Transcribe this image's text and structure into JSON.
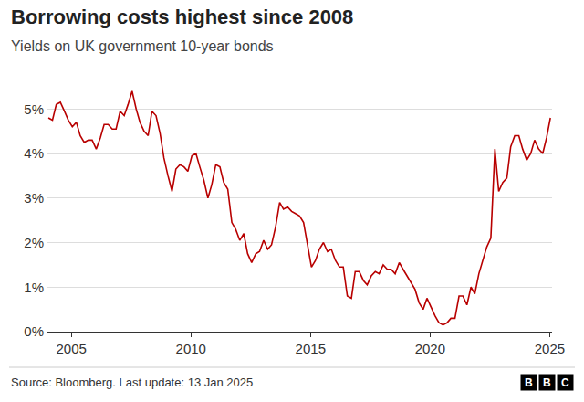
{
  "chart_data": {
    "type": "line",
    "title": "Borrowing costs highest since 2008",
    "subtitle": "Yields on UK government 10-year bonds",
    "source": "Source: Bloomberg. Last update: 13 Jan 2025",
    "logo": "BBC",
    "color": "#b80000",
    "grid": true,
    "xlim": [
      2004,
      2025.1
    ],
    "xticks": [
      2005,
      2010,
      2015,
      2020,
      2025
    ],
    "ylim": [
      0,
      5.6
    ],
    "yticks": [
      {
        "value": 0,
        "label": "0%"
      },
      {
        "value": 1,
        "label": "1%"
      },
      {
        "value": 2,
        "label": "2%"
      },
      {
        "value": 3,
        "label": "3%"
      },
      {
        "value": 4,
        "label": "4%"
      },
      {
        "value": 5,
        "label": "5%"
      }
    ],
    "x": [
      2004.04,
      2004.21,
      2004.37,
      2004.54,
      2004.71,
      2004.87,
      2005.04,
      2005.21,
      2005.37,
      2005.54,
      2005.71,
      2005.87,
      2006.04,
      2006.21,
      2006.37,
      2006.54,
      2006.71,
      2006.87,
      2007.04,
      2007.21,
      2007.37,
      2007.54,
      2007.71,
      2007.87,
      2008.04,
      2008.21,
      2008.37,
      2008.54,
      2008.71,
      2008.87,
      2009.04,
      2009.21,
      2009.37,
      2009.54,
      2009.71,
      2009.87,
      2010.04,
      2010.21,
      2010.37,
      2010.54,
      2010.71,
      2010.87,
      2011.04,
      2011.21,
      2011.37,
      2011.54,
      2011.71,
      2011.87,
      2012.04,
      2012.21,
      2012.37,
      2012.54,
      2012.71,
      2012.87,
      2013.04,
      2013.21,
      2013.37,
      2013.54,
      2013.71,
      2013.87,
      2014.04,
      2014.21,
      2014.37,
      2014.54,
      2014.71,
      2014.87,
      2015.04,
      2015.21,
      2015.37,
      2015.54,
      2015.71,
      2015.87,
      2016.04,
      2016.21,
      2016.37,
      2016.54,
      2016.71,
      2016.87,
      2017.04,
      2017.21,
      2017.37,
      2017.54,
      2017.71,
      2017.87,
      2018.04,
      2018.21,
      2018.37,
      2018.54,
      2018.71,
      2018.87,
      2019.04,
      2019.21,
      2019.37,
      2019.54,
      2019.71,
      2019.87,
      2020.04,
      2020.21,
      2020.37,
      2020.54,
      2020.71,
      2020.87,
      2021.04,
      2021.21,
      2021.37,
      2021.54,
      2021.71,
      2021.87,
      2022.04,
      2022.21,
      2022.37,
      2022.54,
      2022.71,
      2022.87,
      2023.04,
      2023.21,
      2023.37,
      2023.54,
      2023.71,
      2023.87,
      2024.04,
      2024.21,
      2024.37,
      2024.54,
      2024.71,
      2024.87,
      2025.03
    ],
    "values": [
      4.8,
      4.75,
      5.1,
      5.15,
      4.95,
      4.75,
      4.6,
      4.7,
      4.4,
      4.25,
      4.3,
      4.3,
      4.1,
      4.35,
      4.65,
      4.65,
      4.55,
      4.55,
      4.95,
      4.85,
      5.1,
      5.4,
      5.0,
      4.7,
      4.5,
      4.4,
      4.95,
      4.85,
      4.45,
      3.9,
      3.5,
      3.15,
      3.65,
      3.75,
      3.7,
      3.6,
      3.95,
      4.0,
      3.7,
      3.4,
      3.0,
      3.3,
      3.75,
      3.7,
      3.35,
      3.2,
      2.45,
      2.3,
      2.05,
      2.2,
      1.75,
      1.55,
      1.75,
      1.8,
      2.05,
      1.85,
      1.95,
      2.35,
      2.9,
      2.75,
      2.8,
      2.7,
      2.65,
      2.6,
      2.45,
      2.0,
      1.45,
      1.6,
      1.85,
      2.0,
      1.8,
      1.85,
      1.6,
      1.45,
      1.45,
      0.8,
      0.75,
      1.35,
      1.35,
      1.15,
      1.05,
      1.25,
      1.35,
      1.3,
      1.5,
      1.4,
      1.4,
      1.3,
      1.55,
      1.4,
      1.25,
      1.1,
      0.95,
      0.65,
      0.5,
      0.75,
      0.55,
      0.35,
      0.2,
      0.15,
      0.2,
      0.3,
      0.3,
      0.8,
      0.8,
      0.6,
      1.0,
      0.85,
      1.3,
      1.6,
      1.9,
      2.1,
      4.1,
      3.15,
      3.35,
      3.45,
      4.15,
      4.4,
      4.4,
      4.1,
      3.85,
      4.0,
      4.3,
      4.1,
      4.0,
      4.35,
      4.8
    ]
  }
}
